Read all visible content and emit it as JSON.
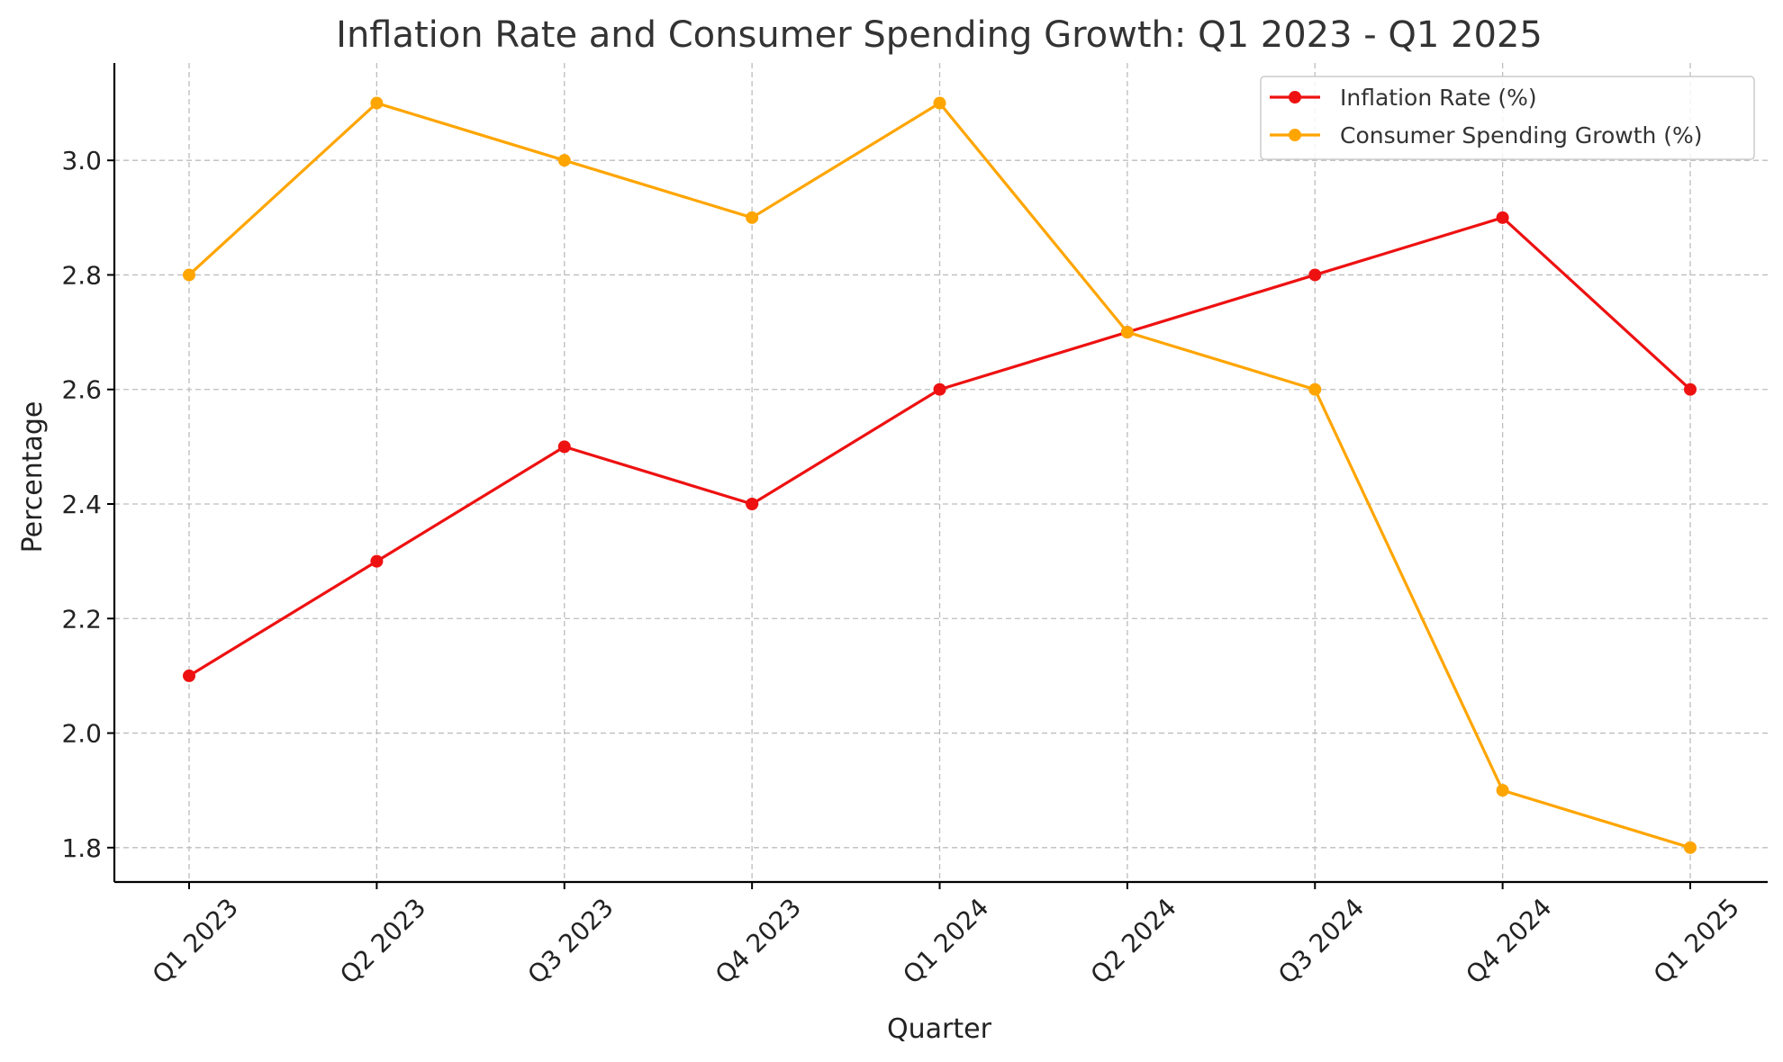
{
  "chart_data": {
    "type": "line",
    "title": "Inflation Rate and Consumer Spending Growth: Q1 2023 - Q1 2025",
    "xlabel": "Quarter",
    "ylabel": "Percentage",
    "categories": [
      "Q1 2023",
      "Q2 2023",
      "Q3 2023",
      "Q4 2023",
      "Q1 2024",
      "Q2 2024",
      "Q3 2024",
      "Q4 2024",
      "Q1 2025"
    ],
    "ylim": [
      1.74,
      3.17
    ],
    "yticks": [
      1.8,
      2.0,
      2.2,
      2.4,
      2.6,
      2.8,
      3.0
    ],
    "ytick_labels": [
      "1.8",
      "2.0",
      "2.2",
      "2.4",
      "2.6",
      "2.8",
      "3.0"
    ],
    "grid": true,
    "legend_position": "top-right",
    "series": [
      {
        "name": "Inflation Rate (%)",
        "color": "#ee1111",
        "marker": "circle",
        "values": [
          2.1,
          2.3,
          2.5,
          2.4,
          2.6,
          2.7,
          2.8,
          2.9,
          2.6
        ]
      },
      {
        "name": "Consumer Spending Growth (%)",
        "color": "#ffa500",
        "marker": "circle",
        "values": [
          2.8,
          3.1,
          3.0,
          2.9,
          3.1,
          2.7,
          2.6,
          1.9,
          1.8
        ]
      }
    ]
  }
}
